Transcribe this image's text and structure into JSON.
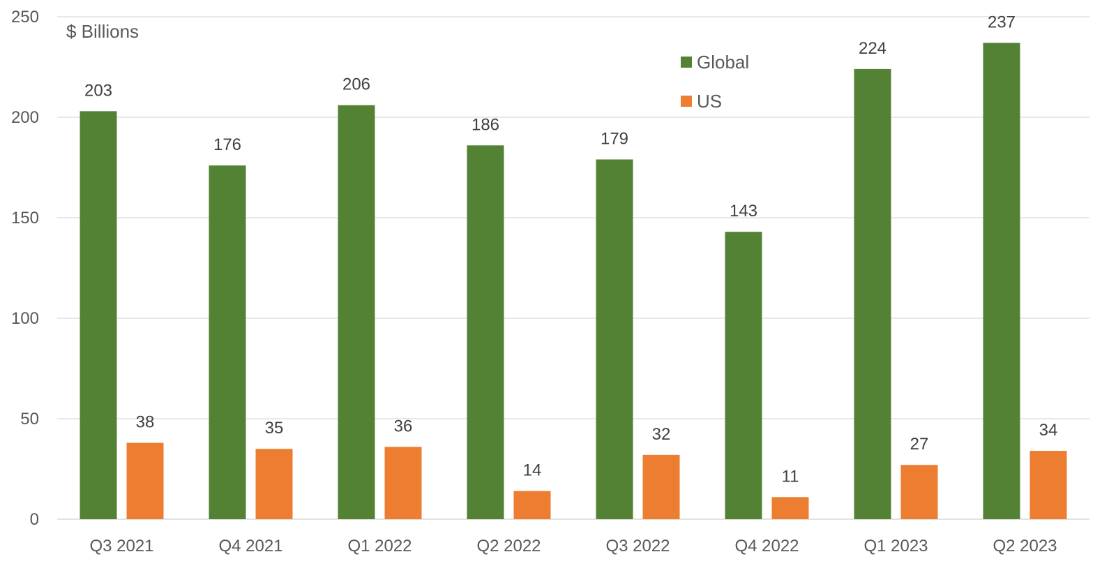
{
  "chart_data": {
    "type": "bar",
    "unit_label": "$ Billions",
    "categories": [
      "Q3 2021",
      "Q4 2021",
      "Q1 2022",
      "Q2 2022",
      "Q3 2022",
      "Q4 2022",
      "Q1 2023",
      "Q2 2023"
    ],
    "series": [
      {
        "name": "Global",
        "color": "#548235",
        "values": [
          203,
          176,
          206,
          186,
          179,
          143,
          224,
          237
        ]
      },
      {
        "name": "US",
        "color": "#ED7D31",
        "values": [
          38,
          35,
          36,
          14,
          32,
          11,
          27,
          34
        ]
      }
    ],
    "ylim": [
      0,
      250
    ],
    "yticks": [
      0,
      50,
      100,
      150,
      200,
      250
    ],
    "grid": true,
    "gridline_color": "#D9D9D9",
    "legend_placement": "top-center",
    "data_labels": true
  }
}
